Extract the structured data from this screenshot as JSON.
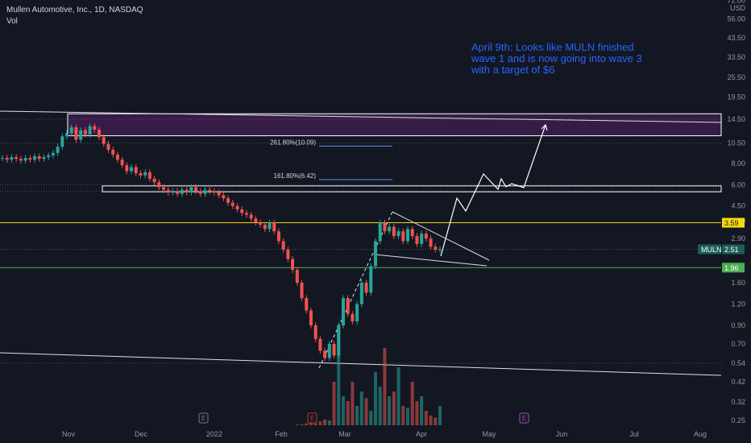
{
  "header": {
    "symbol": "Mullen Automotive, Inc., 1D, NASDAQ",
    "indicator": "Vol"
  },
  "annotation": {
    "text": "April 9th: Looks like MULN finished wave 1 and is now going into wave 3 with a target of $6"
  },
  "fib_labels": [
    "261.80%(10.09)",
    "161.80%(6.42)"
  ],
  "ticker_tag": "MULN",
  "colors": {
    "up": "#26a69a",
    "down": "#ef5350",
    "level": "#f5d90a",
    "level_green": "#4caf50",
    "annotation": "#2962ff",
    "zone": "#9c27b0",
    "background": "#131722"
  },
  "chart_data": {
    "type": "candlestick",
    "y_scale": "log",
    "currency": "USD",
    "y_ticks": [
      72.0,
      56.0,
      43.5,
      33.5,
      25.5,
      19.5,
      14.5,
      10.5,
      8.0,
      6.0,
      4.5,
      3.7,
      2.9,
      1.6,
      1.2,
      0.9,
      0.7,
      0.54,
      0.42,
      0.32,
      0.25
    ],
    "x_ticks": [
      "Nov",
      "Dec",
      "2022",
      "Feb",
      "Mar",
      "Apr",
      "May",
      "Jun",
      "Jul",
      "Aug"
    ],
    "price_tags": {
      "resistance": 3.59,
      "last": 2.51,
      "support": 1.96
    },
    "earnings_markers": [
      "E",
      "E",
      "E"
    ],
    "closes": [
      8.6,
      8.4,
      8.7,
      8.5,
      8.3,
      8.6,
      8.4,
      8.8,
      8.5,
      8.7,
      8.9,
      9.2,
      10.0,
      11.5,
      12.0,
      13.0,
      11.0,
      12.5,
      11.8,
      13.2,
      12.6,
      11.4,
      10.4,
      9.6,
      9.0,
      8.4,
      7.8,
      7.2,
      7.6,
      7.0,
      6.8,
      7.1,
      6.5,
      6.2,
      5.8,
      5.6,
      5.4,
      5.5,
      5.3,
      5.6,
      5.4,
      5.8,
      5.5,
      5.3,
      5.6,
      5.5,
      5.4,
      5.2,
      5.0,
      4.7,
      4.5,
      4.3,
      4.1,
      4.0,
      3.8,
      3.6,
      3.5,
      3.3,
      3.6,
      3.2,
      2.8,
      2.5,
      2.2,
      1.9,
      1.6,
      1.3,
      1.1,
      0.9,
      0.75,
      0.64,
      0.58,
      0.7,
      0.6,
      0.9,
      1.3,
      1.05,
      0.95,
      1.2,
      1.6,
      1.4,
      2.0,
      2.8,
      3.6,
      3.2,
      3.4,
      3.0,
      3.2,
      2.8,
      3.3,
      3.0,
      2.7,
      3.1,
      2.9,
      2.6,
      2.5,
      2.51
    ],
    "volumes": [
      0,
      0,
      0,
      0,
      0,
      0,
      0,
      0,
      0,
      0,
      0,
      0,
      0,
      0,
      0,
      0,
      0,
      0,
      0,
      0,
      0,
      0,
      0,
      0,
      0,
      0,
      0,
      0,
      0,
      0,
      0,
      0,
      0,
      0,
      0,
      0,
      0,
      0,
      0,
      0,
      0,
      0,
      0,
      0,
      0,
      0,
      0,
      0,
      0,
      0,
      0,
      0,
      0,
      0,
      0,
      0,
      0,
      0,
      0,
      0,
      0,
      0,
      0,
      0,
      1,
      1,
      2,
      3,
      2,
      4,
      6,
      5,
      45,
      100,
      30,
      25,
      45,
      20,
      35,
      28,
      15,
      55,
      40,
      80,
      30,
      35,
      60,
      20,
      18,
      45,
      25,
      30,
      15,
      10,
      8,
      20
    ]
  }
}
